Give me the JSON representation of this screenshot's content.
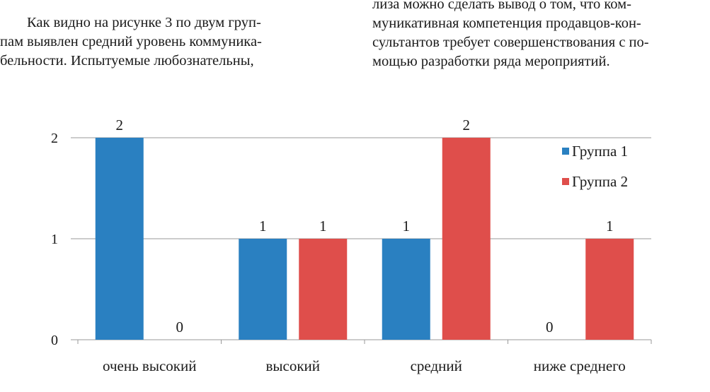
{
  "article": {
    "left_column": [
      "Как видно на рисунке 3 по двум груп-",
      "пам выявлен средний уровень коммуника-",
      "бельности. Испытуемые любознательны,"
    ],
    "right_column": [
      "лиза можно сделать вывод о том, что ком-",
      "муникативная компетенция продавцов-кон-",
      "сультантов требует совершенствования с по-",
      "мощью разработки ряда мероприятий."
    ]
  },
  "chart_data": {
    "type": "bar",
    "categories": [
      "очень высокий",
      "высокий",
      "средний",
      "ниже среднего"
    ],
    "series": [
      {
        "name": "Группа 1",
        "values": [
          2,
          1,
          1,
          0
        ],
        "color": "#2a80c1"
      },
      {
        "name": "Группа 2",
        "values": [
          0,
          1,
          2,
          1
        ],
        "color": "#df4e4b"
      }
    ],
    "ylim": [
      0,
      2
    ],
    "yticks": [
      0,
      1,
      2
    ],
    "title": "",
    "xlabel": "",
    "ylabel": "",
    "grid": true,
    "legend_position": "top-right",
    "data_labels": true
  }
}
